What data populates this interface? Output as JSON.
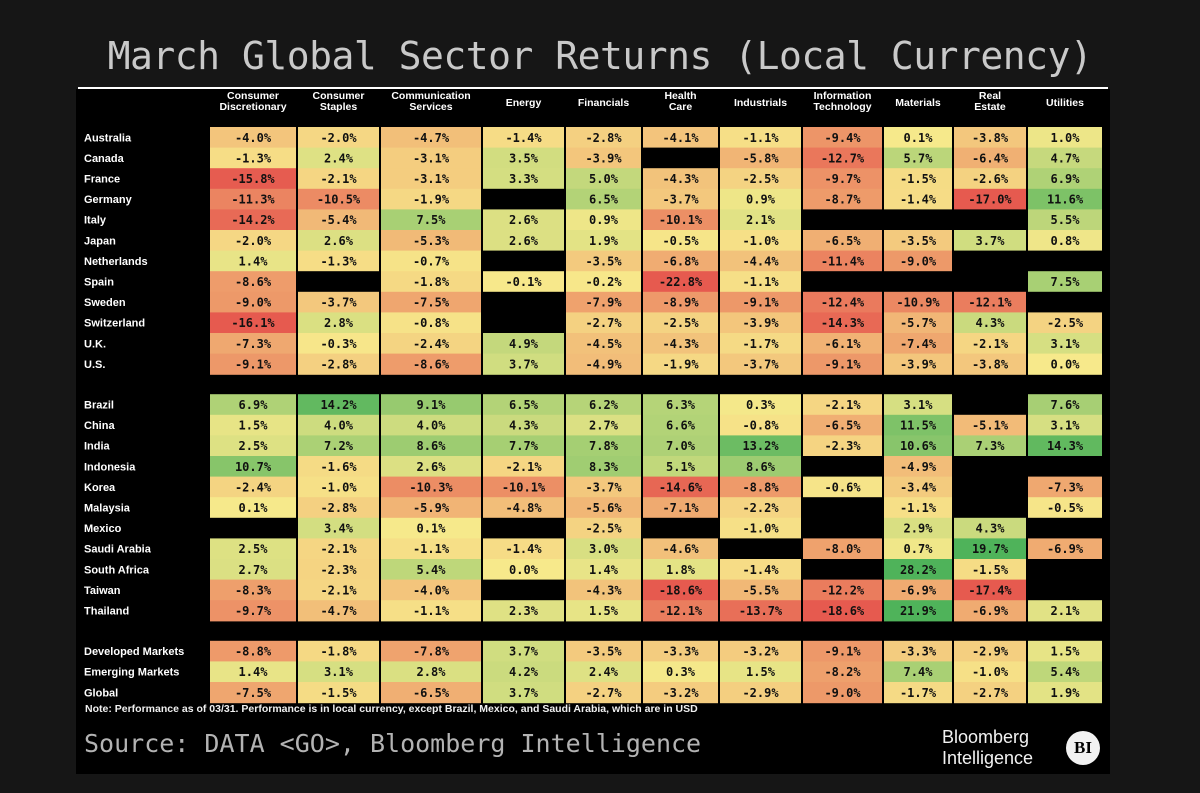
{
  "title": "March Global Sector Returns (Local Currency)",
  "note": "Note: Performance as of 03/31. Performance is in local currency, except Brazil, Mexico, and Saudi Arabia, which are in USD",
  "source": "Source: DATA <GO>, Bloomberg Intelligence",
  "logo": {
    "line1": "Bloomberg",
    "line2": "Intelligence",
    "badge": "BI"
  },
  "chart_data": {
    "type": "heatmap",
    "title": "March Global Sector Returns (Local Currency)",
    "unit": "%",
    "columns": [
      [
        "Consumer",
        "Discretionary"
      ],
      [
        "Consumer",
        "Staples"
      ],
      [
        "Communication",
        "Services"
      ],
      [
        "Energy"
      ],
      [
        "Financials"
      ],
      [
        "Health",
        "Care"
      ],
      [
        "Industrials"
      ],
      [
        "Information",
        "Technology"
      ],
      [
        "Materials"
      ],
      [
        "Real",
        "Estate"
      ],
      [
        "Utilities"
      ]
    ],
    "groups": [
      {
        "rows": [
          {
            "label": "Australia",
            "values": [
              -4.0,
              -2.0,
              -4.7,
              -1.4,
              -2.8,
              -4.1,
              -1.1,
              -9.4,
              0.1,
              -3.8,
              1.0
            ]
          },
          {
            "label": "Canada",
            "values": [
              -1.3,
              2.4,
              -3.1,
              3.5,
              -3.9,
              null,
              -5.8,
              -12.7,
              5.7,
              -6.4,
              4.7
            ]
          },
          {
            "label": "France",
            "values": [
              -15.8,
              -2.1,
              -3.1,
              3.3,
              5.0,
              -4.3,
              -2.5,
              -9.7,
              -1.5,
              -2.6,
              6.9
            ]
          },
          {
            "label": "Germany",
            "values": [
              -11.3,
              -10.5,
              -1.9,
              null,
              6.5,
              -3.7,
              0.9,
              -8.7,
              -1.4,
              -17.0,
              11.6
            ]
          },
          {
            "label": "Italy",
            "values": [
              -14.2,
              -5.4,
              7.5,
              2.6,
              0.9,
              -10.1,
              2.1,
              null,
              null,
              null,
              5.5
            ]
          },
          {
            "label": "Japan",
            "values": [
              -2.0,
              2.6,
              -5.3,
              2.6,
              1.9,
              -0.5,
              -1.0,
              -6.5,
              -3.5,
              3.7,
              0.8
            ]
          },
          {
            "label": "Netherlands",
            "values": [
              1.4,
              -1.3,
              -0.7,
              null,
              -3.5,
              -6.8,
              -4.4,
              -11.4,
              -9.0,
              null,
              null
            ]
          },
          {
            "label": "Spain",
            "values": [
              -8.6,
              null,
              -1.8,
              -0.1,
              -0.2,
              -22.8,
              -1.1,
              null,
              null,
              null,
              7.5
            ]
          },
          {
            "label": "Sweden",
            "values": [
              -9.0,
              -3.7,
              -7.5,
              null,
              -7.9,
              -8.9,
              -9.1,
              -12.4,
              -10.9,
              -12.1,
              null
            ]
          },
          {
            "label": "Switzerland",
            "values": [
              -16.1,
              2.8,
              -0.8,
              null,
              -2.7,
              -2.5,
              -3.9,
              -14.3,
              -5.7,
              4.3,
              -2.5
            ]
          },
          {
            "label": "U.K.",
            "values": [
              -7.3,
              -0.3,
              -2.4,
              4.9,
              -4.5,
              -4.3,
              -1.7,
              -6.1,
              -7.4,
              -2.1,
              3.1
            ]
          },
          {
            "label": "U.S.",
            "values": [
              -9.1,
              -2.8,
              -8.6,
              3.7,
              -4.9,
              -1.9,
              -3.7,
              -9.1,
              -3.9,
              -3.8,
              0.0
            ]
          }
        ]
      },
      {
        "rows": [
          {
            "label": "Brazil",
            "values": [
              6.9,
              14.2,
              9.1,
              6.5,
              6.2,
              6.3,
              0.3,
              -2.1,
              3.1,
              null,
              7.6
            ]
          },
          {
            "label": "China",
            "values": [
              1.5,
              4.0,
              4.0,
              4.3,
              2.7,
              6.6,
              -0.8,
              -6.5,
              11.5,
              -5.1,
              3.1
            ]
          },
          {
            "label": "India",
            "values": [
              2.5,
              7.2,
              8.6,
              7.7,
              7.8,
              7.0,
              13.2,
              -2.3,
              10.6,
              7.3,
              14.3
            ]
          },
          {
            "label": "Indonesia",
            "values": [
              10.7,
              -1.6,
              2.6,
              -2.1,
              8.3,
              5.1,
              8.6,
              null,
              -4.9,
              null,
              null
            ]
          },
          {
            "label": "Korea",
            "values": [
              -2.4,
              -1.0,
              -10.3,
              -10.1,
              -3.7,
              -14.6,
              -8.8,
              -0.6,
              -3.4,
              null,
              -7.3
            ]
          },
          {
            "label": "Malaysia",
            "values": [
              0.1,
              -2.8,
              -5.9,
              -4.8,
              -5.6,
              -7.1,
              -2.2,
              null,
              -1.1,
              null,
              -0.5
            ]
          },
          {
            "label": "Mexico",
            "values": [
              null,
              3.4,
              0.1,
              null,
              -2.5,
              null,
              -1.0,
              null,
              2.9,
              4.3,
              null
            ]
          },
          {
            "label": "Saudi Arabia",
            "values": [
              2.5,
              -2.1,
              -1.1,
              -1.4,
              3.0,
              -4.6,
              null,
              -8.0,
              0.7,
              19.7,
              -6.9
            ]
          },
          {
            "label": "South Africa",
            "values": [
              2.7,
              -2.3,
              5.4,
              0.0,
              1.4,
              1.8,
              -1.4,
              null,
              28.2,
              -1.5,
              null
            ]
          },
          {
            "label": "Taiwan",
            "values": [
              -8.3,
              -2.1,
              -4.0,
              null,
              -4.3,
              -18.6,
              -5.5,
              -12.2,
              -6.9,
              -17.4,
              null
            ]
          },
          {
            "label": "Thailand",
            "values": [
              -9.7,
              -4.7,
              -1.1,
              2.3,
              1.5,
              -12.1,
              -13.7,
              -18.6,
              21.9,
              -6.9,
              2.1
            ]
          }
        ]
      },
      {
        "rows": [
          {
            "label": "Developed Markets",
            "values": [
              -8.8,
              -1.8,
              -7.8,
              3.7,
              -3.5,
              -3.3,
              -3.2,
              -9.1,
              -3.3,
              -2.9,
              1.5
            ]
          },
          {
            "label": "Emerging Markets",
            "values": [
              1.4,
              3.1,
              2.8,
              4.2,
              2.4,
              0.3,
              1.5,
              -8.2,
              7.4,
              -1.0,
              5.4
            ]
          },
          {
            "label": "Global",
            "values": [
              -7.5,
              -1.5,
              -6.5,
              3.7,
              -2.7,
              -3.2,
              -2.9,
              -9.0,
              -1.7,
              -2.7,
              1.9
            ]
          }
        ]
      }
    ],
    "color_scale": {
      "low_value": -16,
      "mid_value": 0,
      "high_value": 16,
      "low_color": "#e65a4f",
      "mid_color": "#f7e98b",
      "high_color": "#4fb35a",
      "missing_color": "#000000"
    }
  }
}
